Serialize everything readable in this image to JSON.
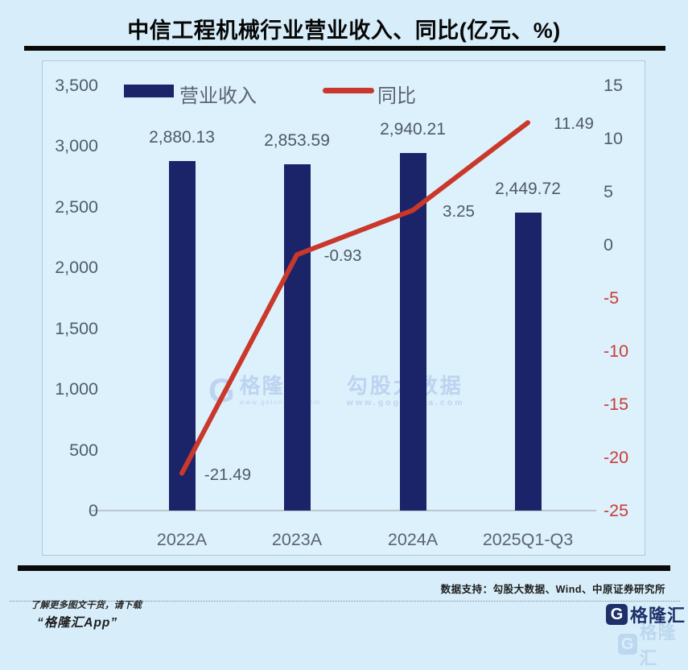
{
  "title": "中信工程机械行业营业收入、同比(亿元、%)",
  "chart_data": {
    "type": "bar",
    "title": "中信工程机械行业营业收入、同比(亿元、%)",
    "categories": [
      "2022A",
      "2023A",
      "2024A",
      "2025Q1-Q3"
    ],
    "series": [
      {
        "name": "营业收入",
        "type": "bar",
        "axis": "left",
        "color": "#1b2369",
        "values": [
          2880.13,
          2853.59,
          2940.21,
          2449.72
        ],
        "labels": [
          "2,880.13",
          "2,853.59",
          "2,940.21",
          "2,449.72"
        ]
      },
      {
        "name": "同比",
        "type": "line",
        "axis": "right",
        "color": "#c9382a",
        "values": [
          -21.49,
          -0.93,
          3.25,
          11.49
        ],
        "labels": [
          "-21.49",
          "-0.93",
          "3.25",
          "11.49"
        ]
      }
    ],
    "left_axis": {
      "min": 0,
      "max": 3500,
      "step": 500,
      "ticks": [
        "3,500",
        "3,000",
        "2,500",
        "2,000",
        "1,500",
        "1,000",
        "500",
        "0"
      ]
    },
    "right_axis": {
      "min": -25,
      "max": 15,
      "step": 5,
      "ticks": [
        "15",
        "10",
        "5",
        "0",
        "-5",
        "-10",
        "-15",
        "-20",
        "-25"
      ],
      "positive_color": "#4f5d6b",
      "negative_color": "#cc3b33"
    },
    "grid": false,
    "legend_position": "top"
  },
  "watermark": {
    "g_glyph": "G",
    "brand": "格隆汇",
    "brand_url": "www.gelonghui.com",
    "data_brand": "勾股大数据",
    "data_url": "www.gogudata.com"
  },
  "footer": {
    "source": "数据支持：勾股大数据、Wind、中原证券研究所",
    "promo_line1": "了解更多图文干货，请下载",
    "promo_line2": "“格隆汇App”",
    "logo_glyph": "G",
    "logo_text": "格隆汇"
  },
  "colors": {
    "page_bg": "#d7eefa",
    "panel_bg": "#dcf1fc",
    "bar": "#1b2369",
    "line": "#c9382a",
    "tick_gray": "#4f5d6b",
    "tick_negative_red": "#cc3b33",
    "watermark_blue": "#a9c0e8"
  }
}
